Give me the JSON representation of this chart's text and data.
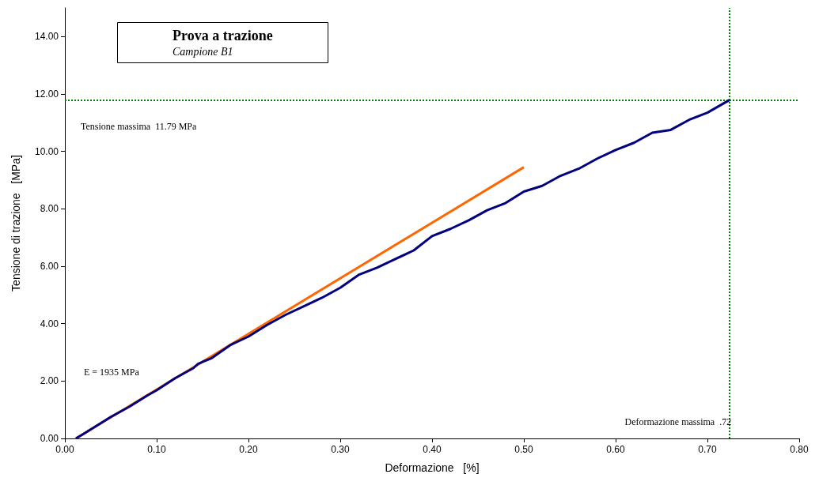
{
  "chart_data": {
    "type": "line",
    "title": "Prova a trazione",
    "subtitle": "Campione B1",
    "xlabel": "Deformazione   [%]",
    "ylabel": "Tensione di trazione   [MPa]",
    "xlim": [
      0,
      0.8
    ],
    "ylim": [
      0,
      15
    ],
    "xticks": [
      {
        "value": 0,
        "label": "0.00"
      },
      {
        "value": 0.1,
        "label": "0.10"
      },
      {
        "value": 0.2,
        "label": "0.20"
      },
      {
        "value": 0.3,
        "label": "0.30"
      },
      {
        "value": 0.4,
        "label": "0.40"
      },
      {
        "value": 0.5,
        "label": "0.50"
      },
      {
        "value": 0.6,
        "label": "0.60"
      },
      {
        "value": 0.7,
        "label": "0.70"
      },
      {
        "value": 0.8,
        "label": "0.80"
      }
    ],
    "yticks": [
      {
        "value": 0,
        "label": "0.00"
      },
      {
        "value": 2,
        "label": "2.00"
      },
      {
        "value": 4,
        "label": "4.00"
      },
      {
        "value": 6,
        "label": "6.00"
      },
      {
        "value": 8,
        "label": "8.00"
      },
      {
        "value": 10,
        "label": "10.00"
      },
      {
        "value": 12,
        "label": "12.00"
      },
      {
        "value": 14,
        "label": "14.00"
      }
    ],
    "grid": false,
    "marker": "none",
    "line_style": "solid",
    "series": [
      {
        "color": "#000080",
        "x": [
          0.012,
          0.02,
          0.03,
          0.05,
          0.07,
          0.09,
          0.1,
          0.12,
          0.14,
          0.145,
          0.16,
          0.18,
          0.2,
          0.22,
          0.24,
          0.26,
          0.28,
          0.3,
          0.32,
          0.34,
          0.36,
          0.38,
          0.4,
          0.42,
          0.44,
          0.46,
          0.48,
          0.5,
          0.52,
          0.54,
          0.56,
          0.58,
          0.6,
          0.62,
          0.64,
          0.66,
          0.68,
          0.7,
          0.724
        ],
        "values": [
          0,
          0.15,
          0.35,
          0.75,
          1.1,
          1.5,
          1.68,
          2.1,
          2.45,
          2.6,
          2.8,
          3.25,
          3.55,
          3.95,
          4.3,
          4.6,
          4.9,
          5.25,
          5.7,
          5.95,
          6.25,
          6.55,
          7.05,
          7.3,
          7.6,
          7.95,
          8.2,
          8.6,
          8.8,
          9.15,
          9.4,
          9.75,
          10.05,
          10.3,
          10.65,
          10.75,
          11.1,
          11.35,
          11.79
        ]
      },
      {
        "color": "#ff6600",
        "x": [
          0.012,
          0.5
        ],
        "values": [
          0,
          9.45
        ]
      }
    ],
    "ref_lines": [
      {
        "axis": "y",
        "value": 11.79,
        "label": "Tensione massima  11.79 MPa",
        "color": "#008000",
        "line_style": "dotted"
      },
      {
        "axis": "x",
        "value": 0.724,
        "label": "Deformazione massima  .72",
        "color": "#008000",
        "line_style": "dotted"
      }
    ],
    "annotations": [
      "E = 1935 MPa"
    ]
  }
}
